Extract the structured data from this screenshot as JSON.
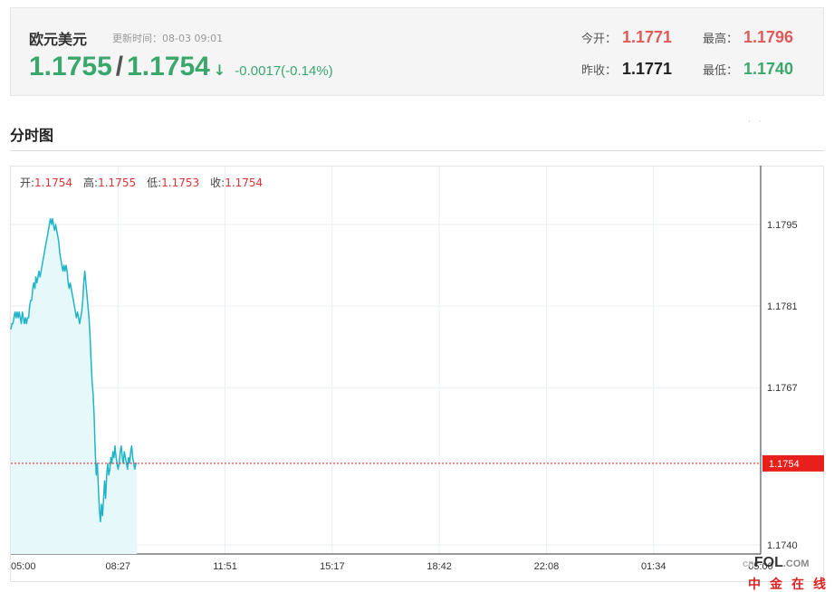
{
  "quote": {
    "name": "欧元美元",
    "updated": "更新时间：08-03 09:01",
    "bid": "1.1755",
    "slash": "/",
    "ask": "1.1754",
    "arrow": "↓",
    "change": "-0.0017(-0.14%)",
    "open_label": "今开：",
    "open_value": "1.1771",
    "high_label": "最高：",
    "high_value": "1.1796",
    "prev_close_label": "昨收：",
    "prev_close_value": "1.1771",
    "low_label": "最低：",
    "low_value": "1.1740"
  },
  "section": {
    "title": "分时图",
    "dots": "· ·"
  },
  "ohlc": {
    "open_label": "开:",
    "open_value": "1.1754",
    "high_label": "高:",
    "high_value": "1.1755",
    "low_label": "低:",
    "low_value": "1.1753",
    "close_label": "收:",
    "close_value": "1.1754"
  },
  "watermark": {
    "top_prefix": "cn",
    "top_main": "FOL",
    "top_suffix": ".COM",
    "bottom": "中金在线"
  },
  "colors": {
    "line": "#1fb5c8",
    "fill": "#e6f8fa",
    "current": "#e8201c",
    "up": "#e05a5a",
    "down": "#3aa76d"
  },
  "chart_data": {
    "type": "area",
    "x_tick_labels": [
      "05:00",
      "08:27",
      "11:51",
      "15:17",
      "18:42",
      "22:08",
      "01:34",
      "05:00"
    ],
    "y_tick_labels": [
      "1.1795",
      "1.1781",
      "1.1767",
      "1.1740"
    ],
    "y_ticks": [
      1.1795,
      1.1781,
      1.1767,
      1.174
    ],
    "ylim": [
      1.174,
      1.1802
    ],
    "grid": true,
    "current_value": 1.1754,
    "current_label": "1.1754",
    "x_minutes": [
      0,
      2,
      4,
      6,
      8,
      10,
      12,
      14,
      16,
      18,
      20,
      22,
      24,
      26,
      28,
      30,
      32,
      34,
      36,
      38,
      40,
      42,
      44,
      46,
      48,
      50,
      52,
      54,
      56,
      58,
      60,
      62,
      64,
      66,
      68,
      70,
      72,
      74,
      76,
      78,
      80,
      82,
      84,
      86,
      88,
      90,
      92,
      94,
      96,
      98,
      100,
      102,
      104,
      106,
      108,
      110,
      112,
      114,
      116,
      118,
      120,
      122,
      124,
      126,
      128,
      130,
      132,
      134,
      136,
      138,
      140,
      142,
      144,
      146,
      148,
      150,
      152,
      154,
      156,
      158,
      160,
      162,
      164,
      166,
      168,
      170,
      172,
      174,
      176,
      178,
      180,
      182,
      184,
      186,
      188,
      190,
      192,
      194,
      196,
      198,
      200,
      202,
      204,
      206,
      208,
      210,
      212,
      214,
      216,
      218,
      220,
      222,
      224,
      226,
      228,
      230,
      232,
      234,
      236,
      238,
      240,
      242
    ],
    "values": [
      1.1777,
      1.1778,
      1.1778,
      1.1779,
      1.178,
      1.1779,
      1.178,
      1.1779,
      1.178,
      1.1779,
      1.1778,
      1.178,
      1.1779,
      1.1778,
      1.1779,
      1.1778,
      1.1779,
      1.1779,
      1.1781,
      1.1782,
      1.1782,
      1.1784,
      1.1785,
      1.1784,
      1.1786,
      1.1785,
      1.1786,
      1.1787,
      1.1786,
      1.1787,
      1.1788,
      1.1789,
      1.179,
      1.1791,
      1.1792,
      1.1793,
      1.1794,
      1.1795,
      1.1796,
      1.1795,
      1.1796,
      1.1795,
      1.1794,
      1.1795,
      1.1794,
      1.1793,
      1.1792,
      1.179,
      1.1789,
      1.1788,
      1.1787,
      1.1788,
      1.1787,
      1.1788,
      1.1787,
      1.1785,
      1.1784,
      1.1785,
      1.1784,
      1.1783,
      1.1782,
      1.1781,
      1.178,
      1.1779,
      1.178,
      1.1779,
      1.1778,
      1.1779,
      1.178,
      1.1782,
      1.1785,
      1.1787,
      1.1785,
      1.1783,
      1.1781,
      1.1779,
      1.1776,
      1.1772,
      1.1768,
      1.1766,
      1.1762,
      1.1756,
      1.1752,
      1.1754,
      1.175,
      1.1746,
      1.1744,
      1.1747,
      1.1745,
      1.1748,
      1.1751,
      1.1748,
      1.1752,
      1.1754,
      1.1752,
      1.1753,
      1.1755,
      1.1754,
      1.1756,
      1.1755,
      1.1757,
      1.1755,
      1.1754,
      1.1753,
      1.1754,
      1.1756,
      1.1757,
      1.1755,
      1.1754,
      1.1756,
      1.1755,
      1.1754,
      1.1753,
      1.1755,
      1.1754,
      1.1756,
      1.1757,
      1.1755,
      1.1754,
      1.1753,
      1.1754,
      1.1754
    ]
  }
}
